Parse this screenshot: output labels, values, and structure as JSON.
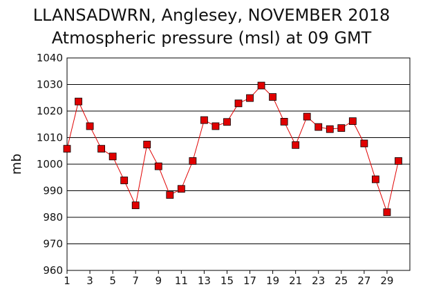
{
  "chart_data": {
    "type": "line",
    "title": "LLANSADWRN, Anglesey,  NOVEMBER 2018",
    "subtitle": "Atmospheric pressure  (msl) at 09 GMT",
    "xlabel": "",
    "ylabel": "mb",
    "x": [
      1,
      2,
      3,
      4,
      5,
      6,
      7,
      8,
      9,
      10,
      11,
      12,
      13,
      14,
      15,
      16,
      17,
      18,
      19,
      20,
      21,
      22,
      23,
      24,
      25,
      26,
      27,
      28,
      29,
      30
    ],
    "xticks": [
      1,
      3,
      5,
      7,
      9,
      11,
      13,
      15,
      17,
      19,
      21,
      23,
      25,
      27,
      29
    ],
    "ylim": [
      960,
      1040
    ],
    "yticks": [
      960,
      970,
      980,
      990,
      1000,
      1010,
      1020,
      1030,
      1040
    ],
    "grid": "horizontal",
    "series": [
      {
        "values": [
          1005.8,
          1023.6,
          1014.3,
          1005.8,
          1002.9,
          993.9,
          984.5,
          1007.4,
          999.2,
          988.4,
          990.7,
          1001.2,
          1016.6,
          1014.3,
          1015.9,
          1022.9,
          1024.9,
          1029.6,
          1025.3,
          1016.0,
          1007.2,
          1017.9,
          1014.0,
          1013.2,
          1013.6,
          1016.2,
          1007.8,
          994.3,
          981.9,
          1001.2
        ],
        "marker_color": "#e00000",
        "line_color": "#e00000"
      }
    ]
  }
}
